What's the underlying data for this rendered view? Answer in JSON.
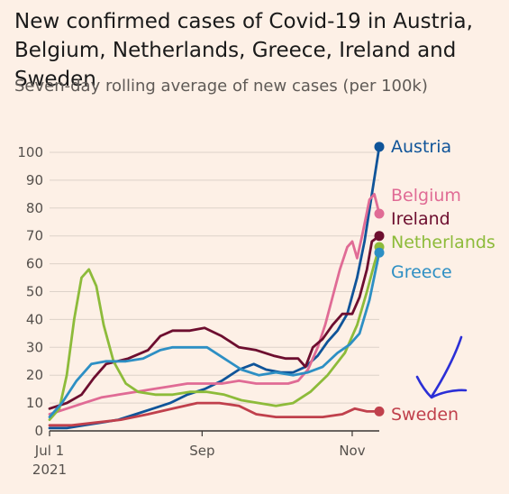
{
  "title": "New confirmed cases of Covid-19 in Austria, Belgium, Netherlands, Greece, Ireland and Sweden",
  "subtitle": "Seven-day rolling average of new cases (per 100k)",
  "chart_data": {
    "type": "line",
    "title": "New confirmed cases of Covid-19 in Austria, Belgium, Netherlands, Greece, Ireland and Sweden",
    "subtitle": "Seven-day rolling average of new cases (per 100k)",
    "xlabel": "",
    "ylabel": "",
    "x_ticks": [
      {
        "date": "2021-07-01",
        "label": "Jul 1",
        "sublabel": "2021"
      },
      {
        "date": "2021-09-01",
        "label": "Sep",
        "sublabel": ""
      },
      {
        "date": "2021-11-01",
        "label": "Nov",
        "sublabel": ""
      }
    ],
    "xlim": [
      "2021-07-01",
      "2021-11-12"
    ],
    "ylim": [
      0,
      100
    ],
    "y_ticks": [
      0,
      10,
      20,
      30,
      40,
      50,
      60,
      70,
      80,
      90,
      100
    ],
    "grid": "horizontal",
    "legend": "direct labels at line ends",
    "series": [
      {
        "name": "Austria",
        "color": "#0f5499",
        "marker_end": true,
        "points": [
          [
            "2021-07-01",
            1
          ],
          [
            "2021-07-08",
            1
          ],
          [
            "2021-07-15",
            2
          ],
          [
            "2021-07-22",
            3
          ],
          [
            "2021-07-29",
            4
          ],
          [
            "2021-08-05",
            6
          ],
          [
            "2021-08-12",
            8
          ],
          [
            "2021-08-19",
            10
          ],
          [
            "2021-08-26",
            13
          ],
          [
            "2021-09-02",
            15
          ],
          [
            "2021-09-09",
            18
          ],
          [
            "2021-09-16",
            22
          ],
          [
            "2021-09-22",
            24
          ],
          [
            "2021-09-27",
            22
          ],
          [
            "2021-10-03",
            21
          ],
          [
            "2021-10-08",
            21
          ],
          [
            "2021-10-13",
            23
          ],
          [
            "2021-10-18",
            27
          ],
          [
            "2021-10-22",
            32
          ],
          [
            "2021-10-26",
            36
          ],
          [
            "2021-10-30",
            42
          ],
          [
            "2021-11-03",
            55
          ],
          [
            "2021-11-06",
            68
          ],
          [
            "2021-11-09",
            85
          ],
          [
            "2021-11-12",
            102
          ]
        ]
      },
      {
        "name": "Belgium",
        "color": "#e06b95",
        "marker_end": true,
        "points": [
          [
            "2021-07-01",
            6
          ],
          [
            "2021-07-08",
            8
          ],
          [
            "2021-07-15",
            10
          ],
          [
            "2021-07-22",
            12
          ],
          [
            "2021-07-29",
            13
          ],
          [
            "2021-08-05",
            14
          ],
          [
            "2021-08-12",
            15
          ],
          [
            "2021-08-19",
            16
          ],
          [
            "2021-08-26",
            17
          ],
          [
            "2021-09-02",
            17
          ],
          [
            "2021-09-09",
            17
          ],
          [
            "2021-09-16",
            18
          ],
          [
            "2021-09-23",
            17
          ],
          [
            "2021-09-30",
            17
          ],
          [
            "2021-10-06",
            17
          ],
          [
            "2021-10-10",
            18
          ],
          [
            "2021-10-14",
            22
          ],
          [
            "2021-10-18",
            30
          ],
          [
            "2021-10-21",
            38
          ],
          [
            "2021-10-24",
            48
          ],
          [
            "2021-10-27",
            58
          ],
          [
            "2021-10-30",
            66
          ],
          [
            "2021-11-01",
            68
          ],
          [
            "2021-11-03",
            62
          ],
          [
            "2021-11-05",
            70
          ],
          [
            "2021-11-08",
            83
          ],
          [
            "2021-11-10",
            85
          ],
          [
            "2021-11-12",
            78
          ]
        ]
      },
      {
        "name": "Ireland",
        "color": "#6d0e2f",
        "marker_end": true,
        "points": [
          [
            "2021-07-01",
            8
          ],
          [
            "2021-07-08",
            10
          ],
          [
            "2021-07-14",
            13
          ],
          [
            "2021-07-19",
            19
          ],
          [
            "2021-07-24",
            24
          ],
          [
            "2021-08-02",
            26
          ],
          [
            "2021-08-10",
            29
          ],
          [
            "2021-08-15",
            34
          ],
          [
            "2021-08-20",
            36
          ],
          [
            "2021-08-27",
            36
          ],
          [
            "2021-09-02",
            37
          ],
          [
            "2021-09-09",
            34
          ],
          [
            "2021-09-16",
            30
          ],
          [
            "2021-09-23",
            29
          ],
          [
            "2021-09-30",
            27
          ],
          [
            "2021-10-05",
            26
          ],
          [
            "2021-10-10",
            26
          ],
          [
            "2021-10-13",
            23
          ],
          [
            "2021-10-16",
            30
          ],
          [
            "2021-10-20",
            33
          ],
          [
            "2021-10-24",
            38
          ],
          [
            "2021-10-28",
            42
          ],
          [
            "2021-11-01",
            42
          ],
          [
            "2021-11-04",
            48
          ],
          [
            "2021-11-07",
            58
          ],
          [
            "2021-11-09",
            68
          ],
          [
            "2021-11-12",
            70
          ]
        ]
      },
      {
        "name": "Netherlands",
        "color": "#8dbb3a",
        "marker_end": true,
        "points": [
          [
            "2021-07-01",
            4
          ],
          [
            "2021-07-05",
            8
          ],
          [
            "2021-07-08",
            20
          ],
          [
            "2021-07-11",
            40
          ],
          [
            "2021-07-14",
            55
          ],
          [
            "2021-07-17",
            58
          ],
          [
            "2021-07-20",
            52
          ],
          [
            "2021-07-23",
            38
          ],
          [
            "2021-07-27",
            25
          ],
          [
            "2021-08-01",
            17
          ],
          [
            "2021-08-06",
            14
          ],
          [
            "2021-08-13",
            13
          ],
          [
            "2021-08-20",
            13
          ],
          [
            "2021-08-27",
            14
          ],
          [
            "2021-09-03",
            14
          ],
          [
            "2021-09-10",
            13
          ],
          [
            "2021-09-17",
            11
          ],
          [
            "2021-09-24",
            10
          ],
          [
            "2021-10-01",
            9
          ],
          [
            "2021-10-08",
            10
          ],
          [
            "2021-10-15",
            14
          ],
          [
            "2021-10-22",
            20
          ],
          [
            "2021-10-29",
            28
          ],
          [
            "2021-11-03",
            38
          ],
          [
            "2021-11-07",
            50
          ],
          [
            "2021-11-10",
            60
          ],
          [
            "2021-11-12",
            66
          ]
        ]
      },
      {
        "name": "Greece",
        "color": "#2d8fc4",
        "marker_end": true,
        "points": [
          [
            "2021-07-01",
            5
          ],
          [
            "2021-07-06",
            10
          ],
          [
            "2021-07-12",
            18
          ],
          [
            "2021-07-18",
            24
          ],
          [
            "2021-07-24",
            25
          ],
          [
            "2021-08-01",
            25
          ],
          [
            "2021-08-08",
            26
          ],
          [
            "2021-08-15",
            29
          ],
          [
            "2021-08-20",
            30
          ],
          [
            "2021-08-27",
            30
          ],
          [
            "2021-09-03",
            30
          ],
          [
            "2021-09-10",
            26
          ],
          [
            "2021-09-17",
            22
          ],
          [
            "2021-09-24",
            20
          ],
          [
            "2021-10-01",
            21
          ],
          [
            "2021-10-08",
            20
          ],
          [
            "2021-10-14",
            21
          ],
          [
            "2021-10-20",
            23
          ],
          [
            "2021-10-26",
            28
          ],
          [
            "2021-10-31",
            31
          ],
          [
            "2021-11-04",
            35
          ],
          [
            "2021-11-08",
            47
          ],
          [
            "2021-11-12",
            64
          ]
        ]
      },
      {
        "name": "Sweden",
        "color": "#c0404c",
        "marker_end": true,
        "points": [
          [
            "2021-07-01",
            2
          ],
          [
            "2021-07-10",
            2
          ],
          [
            "2021-07-20",
            3
          ],
          [
            "2021-07-30",
            4
          ],
          [
            "2021-08-10",
            6
          ],
          [
            "2021-08-20",
            8
          ],
          [
            "2021-08-30",
            10
          ],
          [
            "2021-09-08",
            10
          ],
          [
            "2021-09-16",
            9
          ],
          [
            "2021-09-23",
            6
          ],
          [
            "2021-10-01",
            5
          ],
          [
            "2021-10-10",
            5
          ],
          [
            "2021-10-20",
            5
          ],
          [
            "2021-10-28",
            6
          ],
          [
            "2021-11-02",
            8
          ],
          [
            "2021-11-07",
            7
          ],
          [
            "2021-11-12",
            7
          ]
        ]
      }
    ]
  }
}
